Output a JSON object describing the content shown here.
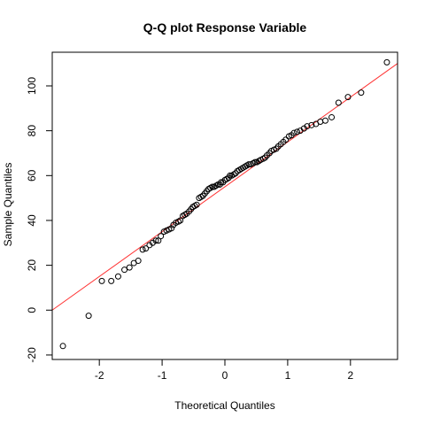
{
  "chart_data": {
    "type": "scatter",
    "title": "Q-Q plot Response Variable",
    "xlabel": "Theoretical Quantiles",
    "ylabel": "Sample Quantiles",
    "xlim": [
      -2.75,
      2.75
    ],
    "ylim": [
      -22,
      115
    ],
    "xticks": [
      -2,
      -1,
      0,
      1,
      2
    ],
    "yticks": [
      -20,
      0,
      20,
      40,
      60,
      80,
      100
    ],
    "grid": false,
    "reference_line": {
      "color": "#ff3333",
      "intercept": 55,
      "slope": 20.0
    },
    "point_style": {
      "shape": "open-circle",
      "color": "#000000"
    },
    "points": [
      {
        "x": -2.58,
        "y": -16.0
      },
      {
        "x": -2.17,
        "y": -2.5
      },
      {
        "x": -1.96,
        "y": 13.0
      },
      {
        "x": -1.81,
        "y": 13.0
      },
      {
        "x": -1.7,
        "y": 15.0
      },
      {
        "x": -1.6,
        "y": 18.0
      },
      {
        "x": -1.52,
        "y": 19.0
      },
      {
        "x": -1.45,
        "y": 21.0
      },
      {
        "x": -1.38,
        "y": 22.0
      },
      {
        "x": -1.31,
        "y": 27.0
      },
      {
        "x": -1.26,
        "y": 27.5
      },
      {
        "x": -1.2,
        "y": 29.0
      },
      {
        "x": -1.15,
        "y": 30.0
      },
      {
        "x": -1.1,
        "y": 31.0
      },
      {
        "x": -1.06,
        "y": 31.0
      },
      {
        "x": -1.02,
        "y": 33.0
      },
      {
        "x": -0.97,
        "y": 35.0
      },
      {
        "x": -0.93,
        "y": 35.5
      },
      {
        "x": -0.89,
        "y": 36.0
      },
      {
        "x": -0.85,
        "y": 36.5
      },
      {
        "x": -0.82,
        "y": 38.0
      },
      {
        "x": -0.78,
        "y": 39.0
      },
      {
        "x": -0.74,
        "y": 39.5
      },
      {
        "x": -0.71,
        "y": 40.0
      },
      {
        "x": -0.67,
        "y": 42.0
      },
      {
        "x": -0.64,
        "y": 42.5
      },
      {
        "x": -0.61,
        "y": 43.0
      },
      {
        "x": -0.57,
        "y": 44.0
      },
      {
        "x": -0.54,
        "y": 45.0
      },
      {
        "x": -0.51,
        "y": 46.0
      },
      {
        "x": -0.48,
        "y": 46.5
      },
      {
        "x": -0.45,
        "y": 47.0
      },
      {
        "x": -0.41,
        "y": 50.0
      },
      {
        "x": -0.38,
        "y": 50.5
      },
      {
        "x": -0.35,
        "y": 51.0
      },
      {
        "x": -0.32,
        "y": 52.0
      },
      {
        "x": -0.29,
        "y": 53.0
      },
      {
        "x": -0.26,
        "y": 54.0
      },
      {
        "x": -0.23,
        "y": 54.5
      },
      {
        "x": -0.2,
        "y": 55.0
      },
      {
        "x": -0.17,
        "y": 55.0
      },
      {
        "x": -0.14,
        "y": 55.5
      },
      {
        "x": -0.11,
        "y": 56.0
      },
      {
        "x": -0.08,
        "y": 56.0
      },
      {
        "x": -0.06,
        "y": 57.0
      },
      {
        "x": -0.03,
        "y": 57.0
      },
      {
        "x": 0.0,
        "y": 58.0
      },
      {
        "x": 0.03,
        "y": 58.5
      },
      {
        "x": 0.06,
        "y": 59.0
      },
      {
        "x": 0.08,
        "y": 60.0
      },
      {
        "x": 0.11,
        "y": 60.0
      },
      {
        "x": 0.14,
        "y": 60.5
      },
      {
        "x": 0.17,
        "y": 61.0
      },
      {
        "x": 0.2,
        "y": 62.0
      },
      {
        "x": 0.23,
        "y": 62.5
      },
      {
        "x": 0.26,
        "y": 63.0
      },
      {
        "x": 0.29,
        "y": 63.5
      },
      {
        "x": 0.32,
        "y": 64.0
      },
      {
        "x": 0.35,
        "y": 64.5
      },
      {
        "x": 0.38,
        "y": 65.0
      },
      {
        "x": 0.41,
        "y": 65.0
      },
      {
        "x": 0.45,
        "y": 65.5
      },
      {
        "x": 0.48,
        "y": 66.0
      },
      {
        "x": 0.51,
        "y": 66.0
      },
      {
        "x": 0.54,
        "y": 66.5
      },
      {
        "x": 0.57,
        "y": 67.0
      },
      {
        "x": 0.61,
        "y": 67.5
      },
      {
        "x": 0.64,
        "y": 68.0
      },
      {
        "x": 0.67,
        "y": 69.0
      },
      {
        "x": 0.71,
        "y": 70.0
      },
      {
        "x": 0.74,
        "y": 71.0
      },
      {
        "x": 0.78,
        "y": 71.5
      },
      {
        "x": 0.82,
        "y": 72.0
      },
      {
        "x": 0.85,
        "y": 73.0
      },
      {
        "x": 0.89,
        "y": 74.0
      },
      {
        "x": 0.93,
        "y": 75.0
      },
      {
        "x": 0.97,
        "y": 76.0
      },
      {
        "x": 1.02,
        "y": 77.5
      },
      {
        "x": 1.06,
        "y": 78.0
      },
      {
        "x": 1.1,
        "y": 79.0
      },
      {
        "x": 1.15,
        "y": 79.5
      },
      {
        "x": 1.2,
        "y": 80.0
      },
      {
        "x": 1.26,
        "y": 81.0
      },
      {
        "x": 1.31,
        "y": 82.0
      },
      {
        "x": 1.38,
        "y": 82.5
      },
      {
        "x": 1.45,
        "y": 83.0
      },
      {
        "x": 1.52,
        "y": 84.0
      },
      {
        "x": 1.6,
        "y": 84.5
      },
      {
        "x": 1.7,
        "y": 86.0
      },
      {
        "x": 1.81,
        "y": 92.5
      },
      {
        "x": 1.96,
        "y": 95.0
      },
      {
        "x": 2.17,
        "y": 97.0
      },
      {
        "x": 2.58,
        "y": 110.5
      }
    ]
  }
}
